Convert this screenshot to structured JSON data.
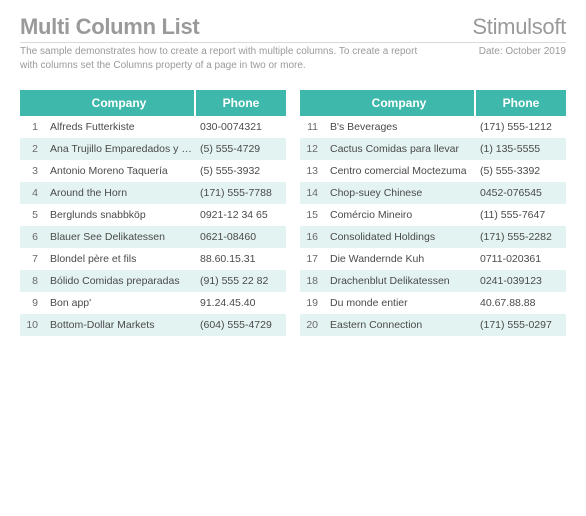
{
  "header": {
    "title": "Multi Column List",
    "brand": "Stimulsoft",
    "description": "The sample demonstrates how to create a report with multiple columns. To create a report with columns set the Columns property of a page in two or more.",
    "date": "Date: October 2019"
  },
  "columns_header": {
    "company": "Company",
    "phone": "Phone"
  },
  "style": {
    "header_bg": "#3fb8ac",
    "header_fg": "#ffffff",
    "alt_row_bg": "#e3f3f1",
    "text_color": "#4a4a4a",
    "muted_color": "#9a9a9a"
  },
  "left": [
    {
      "n": "1",
      "company": "Alfreds Futterkiste",
      "phone": "030-0074321"
    },
    {
      "n": "2",
      "company": "Ana Trujillo Emparedados y helado",
      "phone": "(5) 555-4729"
    },
    {
      "n": "3",
      "company": "Antonio Moreno Taquería",
      "phone": "(5) 555-3932"
    },
    {
      "n": "4",
      "company": "Around the Horn",
      "phone": "(171) 555-7788"
    },
    {
      "n": "5",
      "company": "Berglunds snabbköp",
      "phone": "0921-12 34 65"
    },
    {
      "n": "6",
      "company": "Blauer See Delikatessen",
      "phone": "0621-08460"
    },
    {
      "n": "7",
      "company": "Blondel père et fils",
      "phone": "88.60.15.31"
    },
    {
      "n": "8",
      "company": "Bólido Comidas preparadas",
      "phone": "(91) 555 22 82"
    },
    {
      "n": "9",
      "company": "Bon app'",
      "phone": "91.24.45.40"
    },
    {
      "n": "10",
      "company": "Bottom-Dollar Markets",
      "phone": "(604) 555-4729"
    }
  ],
  "right": [
    {
      "n": "11",
      "company": "B's Beverages",
      "phone": "(171) 555-1212"
    },
    {
      "n": "12",
      "company": "Cactus Comidas para llevar",
      "phone": "(1) 135-5555"
    },
    {
      "n": "13",
      "company": "Centro comercial Moctezuma",
      "phone": "(5) 555-3392"
    },
    {
      "n": "14",
      "company": "Chop-suey Chinese",
      "phone": "0452-076545"
    },
    {
      "n": "15",
      "company": "Comércio Mineiro",
      "phone": "(11) 555-7647"
    },
    {
      "n": "16",
      "company": "Consolidated Holdings",
      "phone": "(171) 555-2282"
    },
    {
      "n": "17",
      "company": "Die Wandernde Kuh",
      "phone": "0711-020361"
    },
    {
      "n": "18",
      "company": "Drachenblut Delikatessen",
      "phone": "0241-039123"
    },
    {
      "n": "19",
      "company": "Du monde entier",
      "phone": "40.67.88.88"
    },
    {
      "n": "20",
      "company": "Eastern Connection",
      "phone": "(171) 555-0297"
    }
  ]
}
